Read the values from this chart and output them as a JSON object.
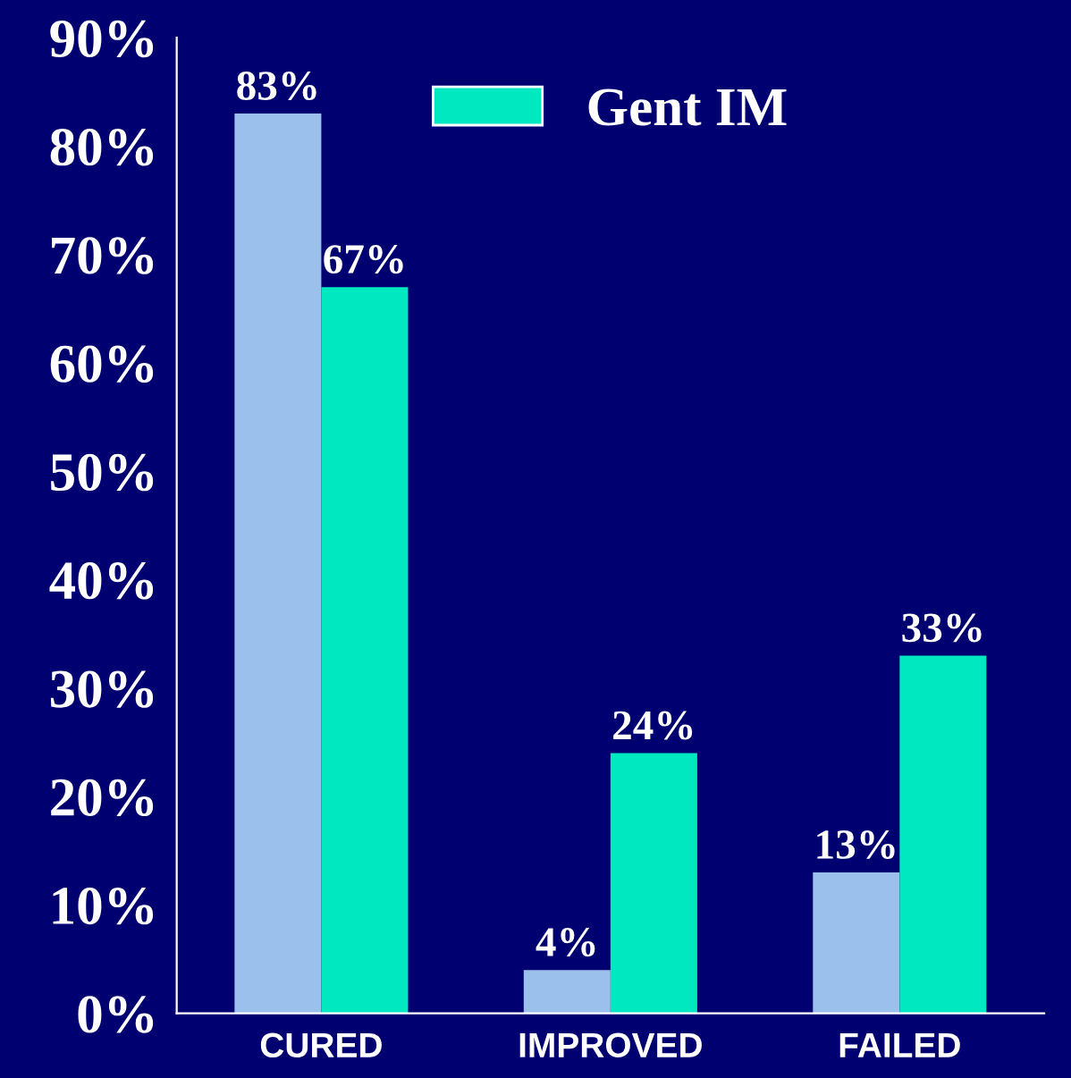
{
  "chart_data": {
    "type": "bar",
    "categories": [
      "CURED",
      "IMPROVED",
      "FAILED"
    ],
    "series": [
      {
        "color": "#9cc0ec",
        "values": [
          83,
          4,
          13
        ],
        "value_labels": [
          "83%",
          "4%",
          "13%"
        ]
      },
      {
        "name": "Gent IM",
        "color": "#00e8c0",
        "values": [
          67,
          24,
          33
        ],
        "value_labels": [
          "67%",
          "24%",
          "33%"
        ]
      }
    ],
    "ylim": [
      0,
      90
    ],
    "yticks": [
      {
        "value": 0,
        "label": "0%"
      },
      {
        "value": 10,
        "label": "10%"
      },
      {
        "value": 20,
        "label": "20%"
      },
      {
        "value": 30,
        "label": "30%"
      },
      {
        "value": 40,
        "label": "40%"
      },
      {
        "value": 50,
        "label": "50%"
      },
      {
        "value": 60,
        "label": "60%"
      },
      {
        "value": 70,
        "label": "70%"
      },
      {
        "value": 80,
        "label": "80%"
      },
      {
        "value": 90,
        "label": "90%"
      }
    ],
    "legend": "top"
  }
}
